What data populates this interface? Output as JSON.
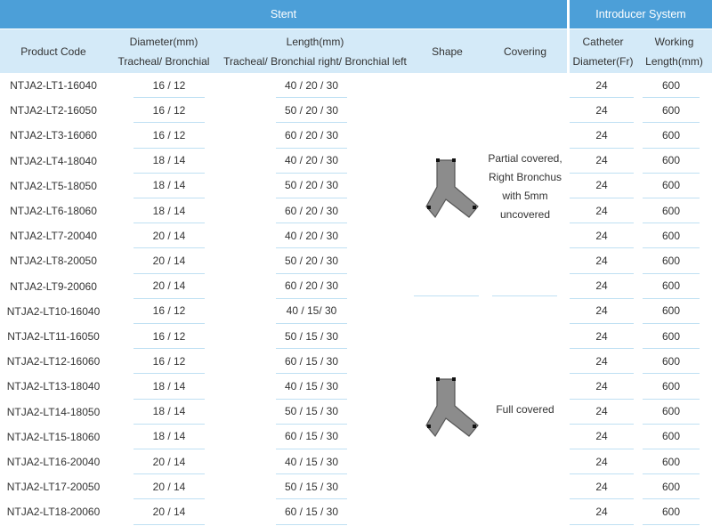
{
  "header": {
    "group_stent": "Stent",
    "group_introducer": "Introducer System",
    "columns": [
      [
        "Product Code"
      ],
      [
        "Diameter(mm)",
        "Tracheal/ Bronchial"
      ],
      [
        "Length(mm)",
        "Tracheal/ Bronchial right/ Bronchial left"
      ],
      [
        "Shape"
      ],
      [
        "Covering"
      ],
      [
        "Catheter",
        "Diameter(Fr)"
      ],
      [
        "Working",
        "Length(mm)"
      ]
    ]
  },
  "covering": [
    "Partial covered, Right Bronchus with 5mm uncovered",
    "Full covered"
  ],
  "table": {
    "rows": [
      [
        "NTJA2-LT1-16040",
        "16 / 12",
        "40 / 20 / 30",
        "24",
        "600"
      ],
      [
        "NTJA2-LT2-16050",
        "16 / 12",
        "50 / 20 / 30",
        "24",
        "600"
      ],
      [
        "NTJA2-LT3-16060",
        "16 / 12",
        "60 / 20 / 30",
        "24",
        "600"
      ],
      [
        "NTJA2-LT4-18040",
        "18 / 14",
        "40 / 20 / 30",
        "24",
        "600"
      ],
      [
        "NTJA2-LT5-18050",
        "18 / 14",
        "50 / 20 / 30",
        "24",
        "600"
      ],
      [
        "NTJA2-LT6-18060",
        "18 / 14",
        "60 / 20 / 30",
        "24",
        "600"
      ],
      [
        "NTJA2-LT7-20040",
        "20 / 14",
        "40 / 20 / 30",
        "24",
        "600"
      ],
      [
        "NTJA2-LT8-20050",
        "20 / 14",
        "50 / 20 / 30",
        "24",
        "600"
      ],
      [
        "NTJA2-LT9-20060",
        "20 / 14",
        "60 / 20 / 30",
        "24",
        "600"
      ],
      [
        "NTJA2-LT10-16040",
        "16 / 12",
        "40 / 15/ 30",
        "24",
        "600"
      ],
      [
        "NTJA2-LT11-16050",
        "16 / 12",
        "50 / 15 / 30",
        "24",
        "600"
      ],
      [
        "NTJA2-LT12-16060",
        "16 / 12",
        "60 / 15 / 30",
        "24",
        "600"
      ],
      [
        "NTJA2-LT13-18040",
        "18 / 14",
        "40 / 15 / 30",
        "24",
        "600"
      ],
      [
        "NTJA2-LT14-18050",
        "18 / 14",
        "50 / 15 / 30",
        "24",
        "600"
      ],
      [
        "NTJA2-LT15-18060",
        "18 / 14",
        "60 / 15 / 30",
        "24",
        "600"
      ],
      [
        "NTJA2-LT16-20040",
        "20 / 14",
        "40 / 15 / 30",
        "24",
        "600"
      ],
      [
        "NTJA2-LT17-20050",
        "20 / 14",
        "50 / 15 / 30",
        "24",
        "600"
      ],
      [
        "NTJA2-LT18-20060",
        "20 / 14",
        "60 / 15 / 30",
        "24",
        "600"
      ]
    ]
  }
}
